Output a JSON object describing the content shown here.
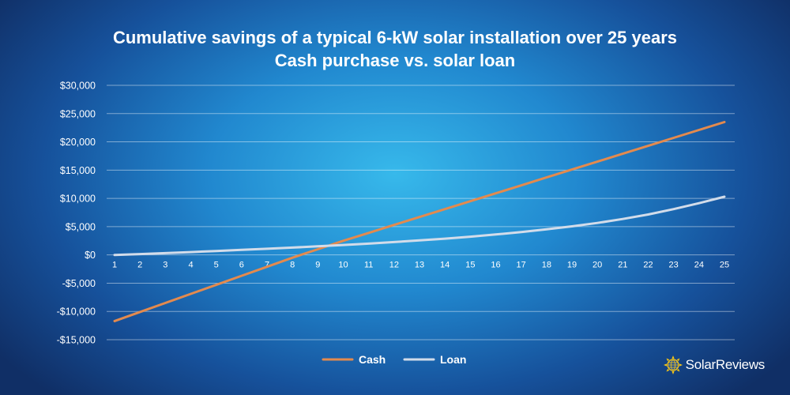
{
  "chart_data": {
    "type": "line",
    "title": "Cumulative savings of a typical 6-kW solar installation over 25 years",
    "subtitle": "Cash purchase vs. solar loan",
    "xlabel": "",
    "ylabel": "",
    "categories": [
      "1",
      "2",
      "3",
      "4",
      "5",
      "6",
      "7",
      "8",
      "9",
      "10",
      "11",
      "12",
      "13",
      "14",
      "15",
      "16",
      "17",
      "18",
      "19",
      "20",
      "21",
      "22",
      "23",
      "24",
      "25"
    ],
    "ylim": [
      -15000,
      30000
    ],
    "y_ticks": [
      30000,
      25000,
      20000,
      15000,
      10000,
      5000,
      0,
      -5000,
      -10000,
      -15000
    ],
    "y_tick_labels": [
      "$30,000",
      "$25,000",
      "$20,000",
      "$15,000",
      "$10,000",
      "$5,000",
      "$0",
      "-$5,000",
      "-$10,000",
      "-$15,000"
    ],
    "grid": true,
    "legend_position": "bottom-center",
    "series": [
      {
        "name": "Cash",
        "color": "#e38a4e",
        "values": [
          -11700,
          -10100,
          -8500,
          -6900,
          -5300,
          -3700,
          -2100,
          -500,
          1000,
          2500,
          3900,
          5300,
          6700,
          8100,
          9500,
          10900,
          12300,
          13700,
          15100,
          16500,
          17900,
          19300,
          20700,
          22100,
          23500
        ]
      },
      {
        "name": "Loan",
        "color": "#d2dcea",
        "values": [
          0,
          150,
          320,
          500,
          690,
          890,
          1090,
          1300,
          1520,
          1750,
          2000,
          2270,
          2560,
          2880,
          3230,
          3620,
          4050,
          4520,
          5050,
          5650,
          6350,
          7150,
          8100,
          9150,
          10300
        ]
      }
    ]
  },
  "brand": {
    "name": "SolarReviews",
    "logo_icon": "sun-globe-logo"
  }
}
